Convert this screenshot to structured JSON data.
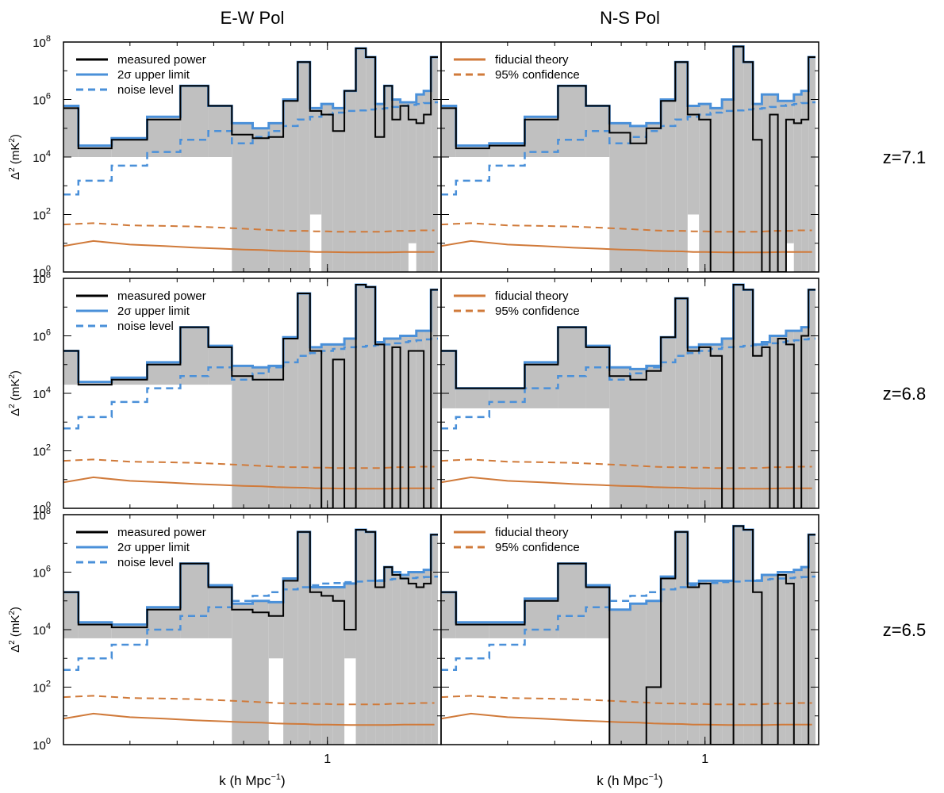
{
  "figure": {
    "column_titles": [
      "E-W Pol",
      "N-S Pol"
    ],
    "row_labels": [
      "z=7.1",
      "z=6.8",
      "z=6.5"
    ],
    "xlabel": "k (h Mpc",
    "xlabel_sup": "−1",
    "xlabel_close": ")",
    "ylabel": "Δ",
    "ylabel_sup": "2",
    "ylabel_unit": " (mK",
    "ylabel_unit_sup": "2",
    "ylabel_close": ")",
    "xtick_label": "1",
    "ytick_base": "10",
    "ytick_exponents": [
      "0",
      "2",
      "4",
      "6",
      "8"
    ],
    "legend_left": [
      {
        "label": "measured power",
        "color": "#000000",
        "style": "solid"
      },
      {
        "label": "2σ upper limit",
        "color": "#4a90d9",
        "style": "solid"
      },
      {
        "label": "noise level",
        "color": "#4a90d9",
        "style": "dashed"
      }
    ],
    "legend_right": [
      {
        "label": "fiducial theory",
        "color": "#d07a3a",
        "style": "solid"
      },
      {
        "label": "95% confidence",
        "color": "#d07a3a",
        "style": "dashed"
      }
    ],
    "colors": {
      "measured": "#000000",
      "upper": "#4a90d9",
      "noise": "#4a90d9",
      "theory": "#d07a3a",
      "band": "#c0c0c0"
    }
  },
  "chart_data": {
    "type": "line",
    "x_scale": "log",
    "y_scale": "log",
    "xlim": [
      0.2,
      2.0
    ],
    "ylim": [
      1,
      100000000
    ],
    "k": [
      0.2,
      0.24,
      0.3,
      0.37,
      0.45,
      0.52,
      0.6,
      0.67,
      0.73,
      0.8,
      0.87,
      0.93,
      1.0,
      1.07,
      1.15,
      1.23,
      1.3,
      1.38,
      1.45,
      1.52,
      1.6,
      1.68,
      1.76,
      1.84,
      1.92
    ],
    "theory": [
      8,
      12,
      9,
      8,
      7,
      6.5,
      6,
      5.8,
      5.5,
      5.3,
      5.2,
      5,
      5,
      4.9,
      4.8,
      4.8,
      4.8,
      4.8,
      4.8,
      4.9,
      5,
      5,
      5,
      5,
      5
    ],
    "confidence_95": [
      45,
      50,
      42,
      40,
      38,
      35,
      32,
      30,
      28,
      27,
      27,
      26,
      26,
      25,
      25,
      25,
      25,
      25,
      26,
      27,
      27,
      27,
      28,
      28,
      28
    ],
    "panels": [
      {
        "pol": "E-W Pol",
        "z": "z=7.1",
        "measured": [
          500000,
          20000,
          40000,
          200000,
          3000000,
          600000,
          60000,
          45000,
          50000,
          900000,
          20000000,
          400000,
          300000,
          80000,
          2000000,
          60000000,
          30000000,
          50000,
          3000000,
          200000,
          600000,
          200000,
          150000,
          300000,
          30000000
        ],
        "upper": [
          600000,
          25000,
          45000,
          250000,
          3000000,
          600000,
          150000,
          100000,
          150000,
          1000000,
          20000000,
          500000,
          700000,
          500000,
          2000000,
          60000000,
          30000000,
          700000,
          3000000,
          1000000,
          800000,
          800000,
          1500000,
          2000000,
          30000000
        ],
        "noise": [
          500,
          1500,
          5000,
          15000,
          40000,
          80000,
          30000,
          50000,
          80000,
          120000,
          200000,
          250000,
          300000,
          350000,
          400000,
          420000,
          450000,
          480000,
          500000,
          550000,
          600000,
          650000,
          700000,
          750000,
          800000
        ],
        "band_lo": [
          10000,
          10000,
          10000,
          10000,
          10000,
          10000,
          1,
          1,
          1,
          1,
          1,
          100,
          1,
          1,
          1,
          1,
          1,
          1,
          1,
          1,
          1,
          10,
          1,
          1,
          1
        ]
      },
      {
        "pol": "N-S Pol",
        "z": "z=7.1",
        "measured": [
          500000,
          20000,
          25000,
          200000,
          3000000,
          600000,
          70000,
          30000,
          100000,
          900000,
          20000000,
          300000,
          200000,
          1,
          1,
          70000000,
          20000000,
          40000,
          1,
          300000,
          1,
          200000,
          150000,
          200000,
          30000000
        ],
        "upper": [
          600000,
          25000,
          30000,
          250000,
          3000000,
          600000,
          150000,
          120000,
          150000,
          1000000,
          20000000,
          600000,
          700000,
          500000,
          1000000,
          70000000,
          20000000,
          700000,
          1500000,
          1500000,
          900000,
          900000,
          1500000,
          2000000,
          30000000
        ],
        "noise": [
          500,
          1500,
          5000,
          15000,
          40000,
          80000,
          30000,
          50000,
          80000,
          120000,
          200000,
          250000,
          300000,
          350000,
          400000,
          420000,
          450000,
          480000,
          500000,
          550000,
          600000,
          650000,
          700000,
          750000,
          800000
        ],
        "band_lo": [
          10000,
          10000,
          10000,
          10000,
          10000,
          10000,
          1,
          1,
          1,
          1,
          1,
          100,
          1,
          1,
          1,
          1,
          1,
          1,
          1,
          1,
          1,
          10,
          1,
          1,
          1
        ]
      },
      {
        "pol": "E-W Pol",
        "z": "z=6.8",
        "measured": [
          300000,
          20000,
          30000,
          100000,
          2000000,
          400000,
          40000,
          30000,
          30000,
          800000,
          30000000,
          300000,
          1,
          150000,
          1,
          60000000,
          50000000,
          500000,
          1,
          400000,
          1,
          300000,
          300000,
          1,
          40000000
        ],
        "upper": [
          300000,
          25000,
          35000,
          120000,
          2000000,
          450000,
          90000,
          80000,
          90000,
          900000,
          30000000,
          400000,
          500000,
          500000,
          800000,
          60000000,
          50000000,
          600000,
          800000,
          800000,
          1000000,
          1000000,
          1500000,
          1500000,
          40000000
        ],
        "noise": [
          600,
          1500,
          5000,
          15000,
          40000,
          80000,
          30000,
          50000,
          80000,
          120000,
          200000,
          250000,
          300000,
          350000,
          400000,
          420000,
          450000,
          480000,
          500000,
          550000,
          600000,
          650000,
          700000,
          750000,
          800000
        ],
        "band_lo": [
          20000,
          20000,
          20000,
          20000,
          20000,
          20000,
          1,
          1,
          1,
          1,
          1,
          1,
          1,
          1,
          1,
          1,
          1,
          1,
          1,
          1,
          1,
          1,
          1,
          1,
          1
        ]
      },
      {
        "pol": "N-S Pol",
        "z": "z=6.8",
        "measured": [
          300000,
          15000,
          15000,
          100000,
          2000000,
          400000,
          40000,
          30000,
          60000,
          900000,
          20000000,
          300000,
          400000,
          200000,
          1,
          60000000,
          40000000,
          200000,
          400000,
          1,
          800000,
          500000,
          1,
          1000000,
          40000000
        ],
        "upper": [
          300000,
          15000,
          15000,
          120000,
          2000000,
          450000,
          80000,
          70000,
          90000,
          900000,
          20000000,
          400000,
          500000,
          500000,
          800000,
          60000000,
          40000000,
          500000,
          600000,
          1000000,
          1000000,
          1500000,
          1500000,
          2000000,
          40000000
        ],
        "noise": [
          600,
          1500,
          5000,
          15000,
          40000,
          80000,
          30000,
          50000,
          80000,
          120000,
          200000,
          250000,
          300000,
          350000,
          400000,
          420000,
          450000,
          480000,
          500000,
          550000,
          600000,
          650000,
          700000,
          750000,
          800000
        ],
        "band_lo": [
          3000,
          3000,
          3000,
          3000,
          3000,
          3000,
          1,
          1,
          1,
          1,
          1,
          1,
          1,
          1,
          1,
          1,
          1,
          1,
          1,
          1,
          1,
          1,
          1,
          1,
          1
        ]
      },
      {
        "pol": "E-W Pol",
        "z": "z=6.5",
        "measured": [
          200000,
          15000,
          12000,
          50000,
          2000000,
          300000,
          50000,
          40000,
          30000,
          500000,
          25000000,
          200000,
          150000,
          100000,
          10000,
          30000000,
          25000000,
          300000,
          1500000,
          800000,
          600000,
          400000,
          300000,
          400000,
          20000000
        ],
        "upper": [
          200000,
          18000,
          15000,
          60000,
          2000000,
          350000,
          80000,
          100000,
          90000,
          600000,
          25000000,
          300000,
          300000,
          300000,
          400000,
          30000000,
          25000000,
          500000,
          1500000,
          1000000,
          800000,
          1000000,
          1000000,
          1200000,
          20000000
        ],
        "noise": [
          400,
          1000,
          3000,
          10000,
          30000,
          60000,
          100000,
          150000,
          200000,
          250000,
          300000,
          350000,
          400000,
          420000,
          450000,
          470000,
          500000,
          520000,
          550000,
          580000,
          600000,
          620000,
          650000,
          680000,
          700000
        ],
        "band_lo": [
          5000,
          5000,
          5000,
          5000,
          5000,
          5000,
          1,
          1,
          1000,
          1,
          1,
          1,
          1,
          1,
          1000,
          1,
          1,
          1,
          1,
          1,
          1,
          1,
          1,
          1,
          1
        ]
      },
      {
        "pol": "N-S Pol",
        "z": "z=6.5",
        "measured": [
          200000,
          15000,
          15000,
          100000,
          2000000,
          300000,
          1,
          1,
          100,
          600000,
          25000000,
          300000,
          400000,
          1,
          1,
          40000000,
          30000000,
          200000,
          1,
          1,
          800000,
          400000,
          1,
          1,
          20000000
        ],
        "upper": [
          200000,
          18000,
          18000,
          120000,
          2000000,
          350000,
          50000,
          80000,
          100000,
          700000,
          25000000,
          400000,
          500000,
          500000,
          500000,
          40000000,
          30000000,
          500000,
          800000,
          800000,
          1000000,
          1000000,
          1200000,
          1500000,
          20000000
        ],
        "noise": [
          400,
          1000,
          3000,
          10000,
          30000,
          60000,
          100000,
          150000,
          200000,
          250000,
          300000,
          350000,
          400000,
          420000,
          450000,
          470000,
          500000,
          520000,
          550000,
          580000,
          600000,
          620000,
          650000,
          680000,
          700000
        ],
        "band_lo": [
          5000,
          5000,
          5000,
          5000,
          5000,
          5000,
          1,
          1,
          1,
          1,
          1,
          1,
          1,
          1,
          1,
          1,
          1,
          1,
          1,
          1,
          1,
          1,
          1,
          1,
          1
        ]
      }
    ]
  }
}
